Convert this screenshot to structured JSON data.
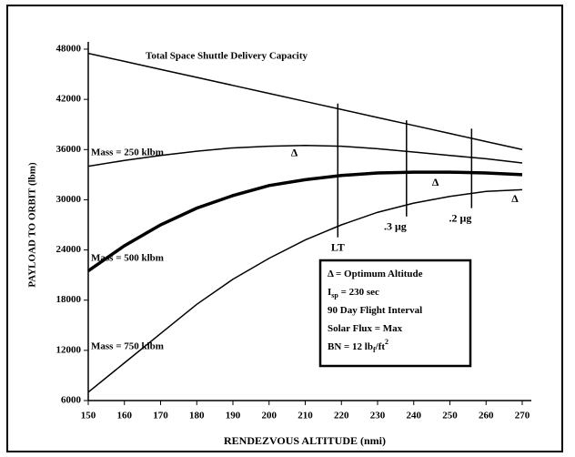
{
  "chart_data": {
    "type": "line",
    "xlabel": "RENDEZVOUS ALTITUDE (nmi)",
    "ylabel": "PAYLOAD TO ORBIT (lbm)",
    "x": [
      150,
      160,
      170,
      180,
      190,
      200,
      210,
      220,
      230,
      240,
      250,
      260,
      270
    ],
    "series": [
      {
        "name": "Total Space Shuttle Delivery Capacity",
        "color": "#000",
        "line_width": 1.5,
        "values": [
          47500,
          46540,
          45580,
          44630,
          43670,
          42710,
          41750,
          40790,
          39830,
          38880,
          37920,
          36960,
          36000
        ]
      },
      {
        "name": "Mass = 250 klbm",
        "color": "#000",
        "line_width": 1.5,
        "values": [
          34000,
          34700,
          35300,
          35800,
          36200,
          36400,
          36500,
          36400,
          36100,
          35700,
          35300,
          34900,
          34400
        ]
      },
      {
        "name": "Mass = 500 klbm",
        "color": "#000",
        "line_width": 3.5,
        "values": [
          21500,
          24500,
          27000,
          29000,
          30500,
          31700,
          32400,
          32900,
          33200,
          33300,
          33300,
          33200,
          33000
        ]
      },
      {
        "name": "Mass = 750 klbm",
        "color": "#000",
        "line_width": 1.5,
        "values": [
          7000,
          10500,
          14000,
          17500,
          20500,
          23000,
          25200,
          27000,
          28500,
          29600,
          30400,
          31000,
          31200
        ]
      }
    ],
    "markers": {
      "label": "Δ",
      "x": [
        207,
        246,
        268
      ],
      "y": [
        35500,
        32000,
        30000
      ]
    },
    "annotations": [
      {
        "label": "LT",
        "x": 219,
        "y_range": [
          25500,
          41500
        ]
      },
      {
        "label": ".3 μg",
        "x": 238,
        "y_range": [
          28000,
          39500
        ]
      },
      {
        "label": ".2 μg",
        "x": 256,
        "y_range": [
          29000,
          38500
        ]
      }
    ],
    "notes": [
      [
        {
          "t": "Δ = Optimum Altitude"
        }
      ],
      [
        {
          "t": "I"
        },
        {
          "t": "sp",
          "sub": true
        },
        {
          "t": " = 230 sec"
        }
      ],
      [
        {
          "t": "90 Day Flight Interval"
        }
      ],
      [
        {
          "t": "Solar Flux = Max"
        }
      ],
      [
        {
          "t": "BN = 12 lb"
        },
        {
          "t": "f",
          "sub": true
        },
        {
          "t": "/ft"
        },
        {
          "t": "2",
          "sup": true
        }
      ]
    ],
    "xlim": [
      150,
      270
    ],
    "ylim": [
      6000,
      48000
    ],
    "xticks": [
      150,
      160,
      170,
      180,
      190,
      200,
      210,
      220,
      230,
      240,
      250,
      260,
      270
    ],
    "yticks": [
      6000,
      12000,
      18000,
      24000,
      30000,
      36000,
      42000,
      48000
    ]
  }
}
